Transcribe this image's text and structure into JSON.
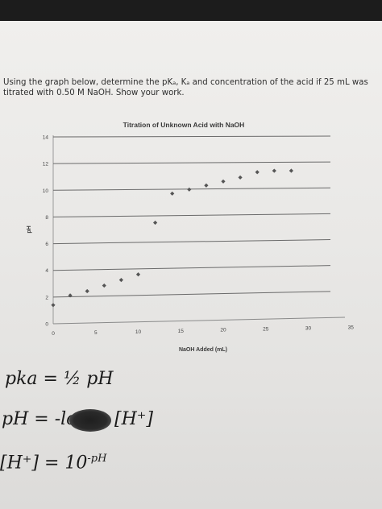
{
  "question": {
    "line1": "Using the graph below, determine the pKₐ, Kₐ and concentration of the acid if 25 mL was",
    "line2": "titrated with 0.50 M NaOH. Show your work."
  },
  "chart_data": {
    "type": "scatter",
    "title": "Titration of Unknown Acid with NaOH",
    "xlabel": "NaOH Added (mL)",
    "ylabel": "pH",
    "xlim": [
      0,
      35
    ],
    "ylim": [
      0,
      14
    ],
    "x_ticks": [
      "0",
      "5",
      "10",
      "15",
      "20",
      "25",
      "30",
      "35"
    ],
    "y_ticks": [
      "0",
      "2",
      "4",
      "6",
      "8",
      "10",
      "12",
      "14"
    ],
    "grid": "horizontal",
    "marker_color": "#555555",
    "series": [
      {
        "x": [
          0,
          2,
          4,
          6,
          8,
          10,
          12,
          14,
          16,
          18,
          20,
          22,
          24,
          26,
          28
        ],
        "y": [
          1.4,
          2.1,
          2.4,
          2.8,
          3.2,
          3.6,
          7.5,
          9.7,
          10.0,
          10.3,
          10.6,
          10.9,
          11.3,
          11.4,
          11.4
        ]
      }
    ]
  },
  "handwriting": {
    "line1": "pka = ½ pH",
    "line2": "pH = -log",
    "line2_end": "[H⁺]",
    "line3": "[H⁺] = 10",
    "line3_sup": "-pH"
  }
}
